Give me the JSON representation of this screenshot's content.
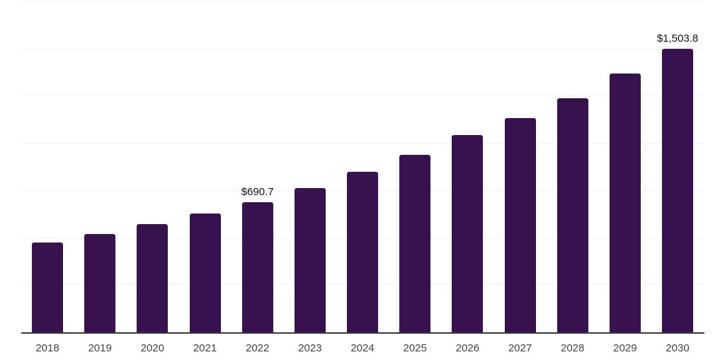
{
  "chart_data": {
    "type": "bar",
    "title": "",
    "xlabel": "",
    "ylabel": "",
    "categories": [
      "2018",
      "2019",
      "2020",
      "2021",
      "2022",
      "2023",
      "2024",
      "2025",
      "2026",
      "2027",
      "2028",
      "2029",
      "2030"
    ],
    "values": [
      476,
      522,
      573,
      630,
      690.7,
      764,
      851,
      939,
      1045,
      1137,
      1240,
      1370,
      1503.8
    ],
    "data_labels": {
      "2022": "$690.7",
      "2030": "$1,503.8"
    },
    "ylim": [
      0,
      1750
    ],
    "gridline_step": 250,
    "grid": "horizontal",
    "legend": "none",
    "colors": {
      "bar": "#38124f",
      "axis_line": "#3a3a3a",
      "gridline": "#f2f2f2",
      "tick_label": "#424242",
      "data_label": "#111111",
      "background": "#ffffff"
    }
  }
}
